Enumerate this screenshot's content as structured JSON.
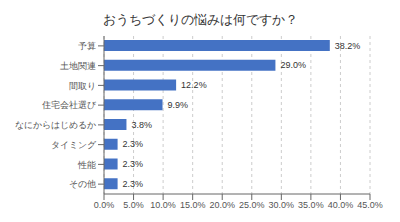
{
  "chart_data": {
    "type": "bar",
    "orientation": "horizontal",
    "title": "おうちづくりの悩みは何ですか？",
    "categories": [
      "予算",
      "土地関連",
      "間取り",
      "住宅会社選び",
      "なにからはじめるか",
      "タイミング",
      "性能",
      "その他"
    ],
    "values": [
      38.2,
      29.0,
      12.2,
      9.9,
      3.8,
      2.3,
      2.3,
      2.3
    ],
    "value_labels": [
      "38.2%",
      "29.0%",
      "12.2%",
      "9.9%",
      "3.8%",
      "2.3%",
      "2.3%",
      "2.3%"
    ],
    "data_labels": true,
    "color": "#4472C4",
    "xlim": [
      0,
      45
    ],
    "xticks": [
      {
        "value": 0,
        "label": "0.0%"
      },
      {
        "value": 5,
        "label": "5.0%"
      },
      {
        "value": 10,
        "label": "10.0%"
      },
      {
        "value": 15,
        "label": "15.0%"
      },
      {
        "value": 20,
        "label": "20.0%"
      },
      {
        "value": 25,
        "label": "25.0%"
      },
      {
        "value": 30,
        "label": "30.0%"
      },
      {
        "value": 35,
        "label": "35.0%"
      },
      {
        "value": 40,
        "label": "40.0%"
      },
      {
        "value": 45,
        "label": "45.0%"
      }
    ],
    "grid": true
  }
}
